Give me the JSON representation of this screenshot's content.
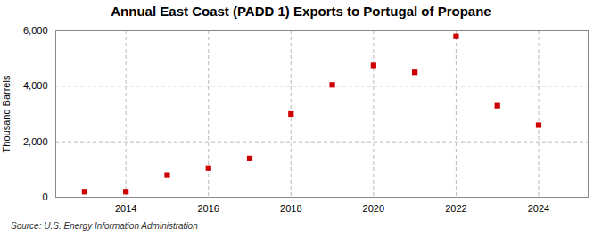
{
  "chart_data": {
    "type": "scatter",
    "title": "Annual East Coast (PADD 1) Exports to Portugal of Propane",
    "y_label": "Thousand Barrels",
    "source": "Source: U.S. Energy Information Administration",
    "x": [
      2013,
      2014,
      2015,
      2016,
      2017,
      2018,
      2019,
      2020,
      2021,
      2022,
      2023,
      2024
    ],
    "values": [
      200,
      200,
      800,
      1050,
      1400,
      3000,
      4050,
      4750,
      4500,
      5800,
      3300,
      2600
    ],
    "color": "#cc0000",
    "marker": "square",
    "xlim": [
      2012.3,
      2025.2
    ],
    "xticks": [
      2014,
      2016,
      2018,
      2020,
      2022,
      2024
    ],
    "ylim": [
      0,
      6000
    ],
    "yticks": [
      0,
      {
        "value": 2000,
        "label": "2,000"
      },
      {
        "value": 4000,
        "label": "4,000"
      },
      {
        "value": 6000,
        "label": "6,000"
      }
    ],
    "grid": true
  }
}
